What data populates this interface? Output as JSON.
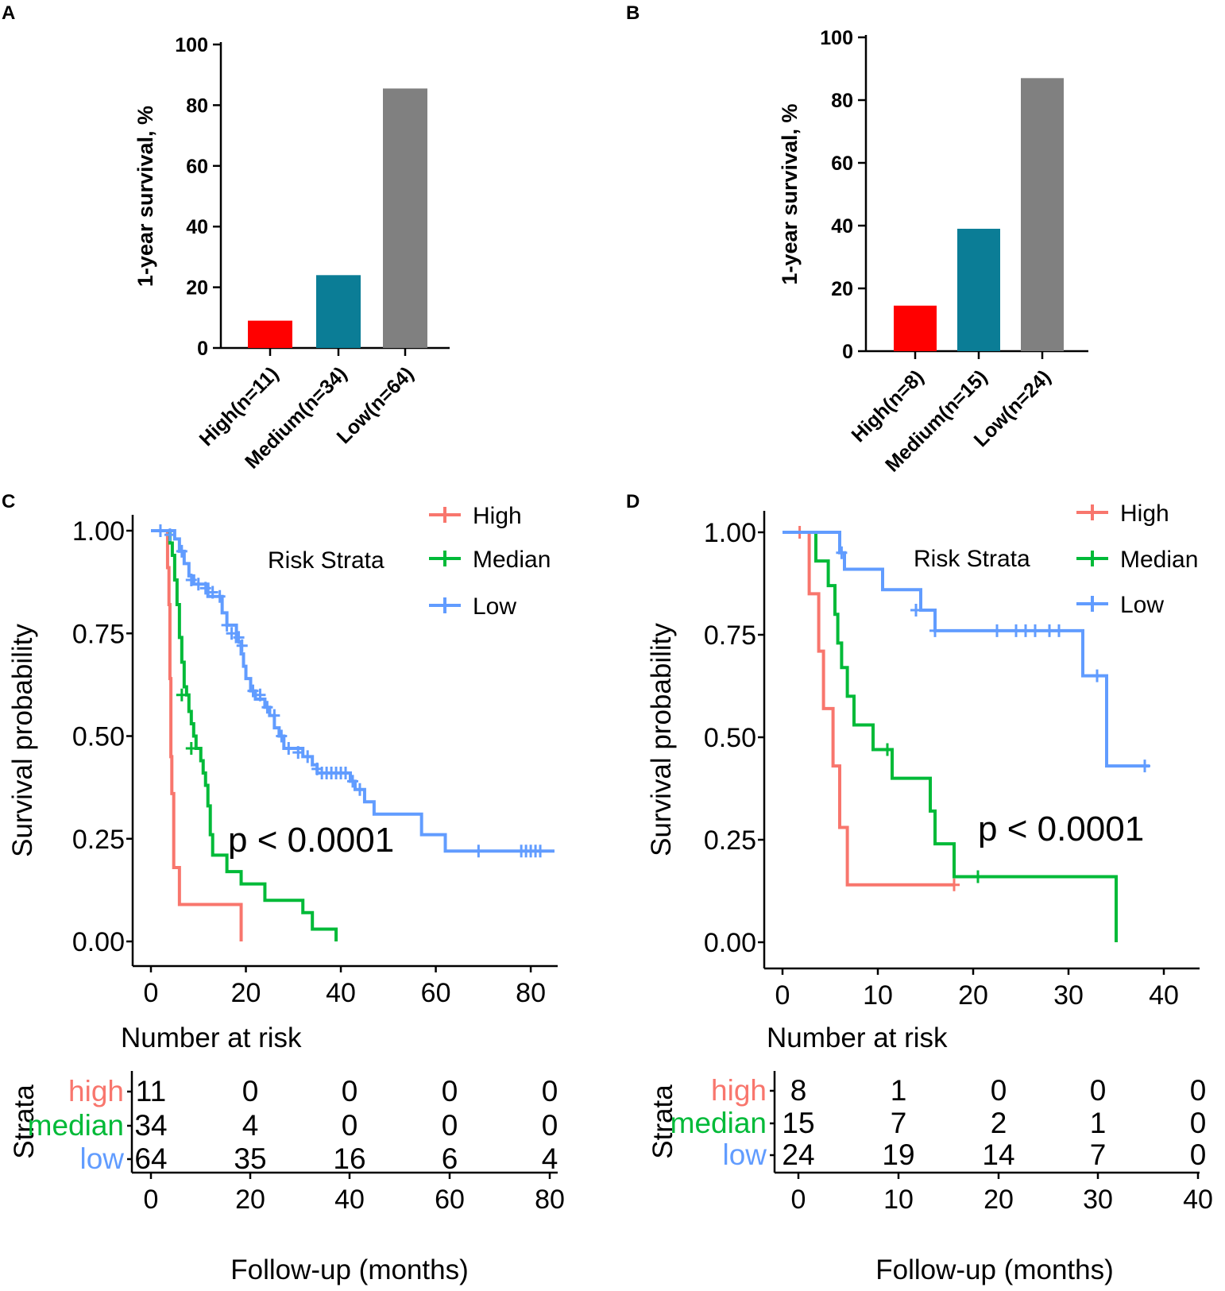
{
  "chart_data": [
    {
      "panel": "A",
      "type": "bar",
      "ylabel": "1-year survival, %",
      "xlabel": "",
      "ylim": [
        0,
        100
      ],
      "yticks": [
        "0",
        "20",
        "40",
        "60",
        "80",
        "100"
      ],
      "categories": [
        "High(n=11)",
        "Medium(n=34)",
        "Low(n=64)"
      ],
      "values": [
        9,
        24,
        85.5
      ],
      "colors": [
        "#ff0000",
        "#0b7d96",
        "#808080"
      ]
    },
    {
      "panel": "B",
      "type": "bar",
      "ylabel": "1-year survival, %",
      "xlabel": "",
      "ylim": [
        0,
        100
      ],
      "yticks": [
        "0",
        "20",
        "40",
        "60",
        "80",
        "100"
      ],
      "categories": [
        "High(n=8)",
        "Medium(n=15)",
        "Low(n=24)"
      ],
      "values": [
        14.5,
        39,
        87
      ],
      "colors": [
        "#ff0000",
        "#0b7d96",
        "#808080"
      ]
    },
    {
      "panel": "C",
      "type": "line",
      "subtype": "kaplan-meier",
      "ylabel": "Survival probability",
      "xlabel": "Follow-up (months)",
      "xlim": [
        0,
        84
      ],
      "ylim": [
        0,
        1
      ],
      "xticks": [
        "0",
        "20",
        "40",
        "60",
        "80"
      ],
      "yticks": [
        "0.00",
        "0.25",
        "0.50",
        "0.75",
        "1.00"
      ],
      "legend_title": "Risk Strata",
      "pvalue": "p < 0.0001",
      "series": [
        {
          "name": "High",
          "color": "#f8766d",
          "steps": [
            [
              0,
              1
            ],
            [
              3.5,
              1
            ],
            [
              3.5,
              0.91
            ],
            [
              3.8,
              0.82
            ],
            [
              4,
              0.64
            ],
            [
              4.2,
              0.45
            ],
            [
              4.4,
              0.36
            ],
            [
              4.8,
              0.18
            ],
            [
              6,
              0.09
            ],
            [
              19,
              0.09
            ],
            [
              19,
              0
            ]
          ],
          "censor": []
        },
        {
          "name": "Median",
          "color": "#00ba38",
          "steps": [
            [
              0,
              1
            ],
            [
              4,
              1
            ],
            [
              4,
              0.97
            ],
            [
              4.5,
              0.94
            ],
            [
              5,
              0.88
            ],
            [
              5.5,
              0.82
            ],
            [
              6,
              0.74
            ],
            [
              6.5,
              0.68
            ],
            [
              7,
              0.62
            ],
            [
              7.5,
              0.6
            ],
            [
              8,
              0.56
            ],
            [
              8.5,
              0.53
            ],
            [
              9,
              0.5
            ],
            [
              9.5,
              0.47
            ],
            [
              10.5,
              0.44
            ],
            [
              11,
              0.41
            ],
            [
              11.5,
              0.38
            ],
            [
              12,
              0.33
            ],
            [
              12.5,
              0.26
            ],
            [
              13,
              0.21
            ],
            [
              16,
              0.17
            ],
            [
              19,
              0.14
            ],
            [
              24,
              0.1
            ],
            [
              32,
              0.07
            ],
            [
              34,
              0.03
            ],
            [
              39,
              0.03
            ],
            [
              39,
              0
            ]
          ],
          "censor": [
            [
              6.5,
              0.6
            ],
            [
              8.5,
              0.47
            ]
          ]
        },
        {
          "name": "Low",
          "color": "#619cff",
          "steps": [
            [
              0,
              1
            ],
            [
              5,
              1
            ],
            [
              5,
              0.98
            ],
            [
              6,
              0.95
            ],
            [
              7,
              0.92
            ],
            [
              8,
              0.89
            ],
            [
              9,
              0.87
            ],
            [
              12,
              0.84
            ],
            [
              15,
              0.8
            ],
            [
              16,
              0.77
            ],
            [
              18,
              0.73
            ],
            [
              19,
              0.7
            ],
            [
              19.5,
              0.67
            ],
            [
              20,
              0.64
            ],
            [
              21,
              0.61
            ],
            [
              22,
              0.59
            ],
            [
              24,
              0.57
            ],
            [
              25,
              0.55
            ],
            [
              26,
              0.52
            ],
            [
              27,
              0.5
            ],
            [
              28,
              0.47
            ],
            [
              32,
              0.45
            ],
            [
              34,
              0.43
            ],
            [
              35,
              0.41
            ],
            [
              42,
              0.39
            ],
            [
              43,
              0.37
            ],
            [
              45,
              0.34
            ],
            [
              47,
              0.31
            ],
            [
              50,
              0.31
            ],
            [
              57,
              0.26
            ],
            [
              62,
              0.22
            ],
            [
              85,
              0.22
            ]
          ],
          "censor": [
            [
              2,
              1
            ],
            [
              4,
              0.99
            ],
            [
              6.5,
              0.95
            ],
            [
              8.5,
              0.88
            ],
            [
              10,
              0.87
            ],
            [
              11.5,
              0.86
            ],
            [
              13,
              0.85
            ],
            [
              14.5,
              0.84
            ],
            [
              16,
              0.77
            ],
            [
              17,
              0.75
            ],
            [
              18.5,
              0.74
            ],
            [
              19.2,
              0.72
            ],
            [
              21.5,
              0.61
            ],
            [
              23,
              0.6
            ],
            [
              24.5,
              0.57
            ],
            [
              26,
              0.55
            ],
            [
              27.5,
              0.5
            ],
            [
              29,
              0.47
            ],
            [
              31,
              0.46
            ],
            [
              33,
              0.45
            ],
            [
              35,
              0.42
            ],
            [
              36,
              0.41
            ],
            [
              37,
              0.41
            ],
            [
              38,
              0.41
            ],
            [
              39,
              0.41
            ],
            [
              40,
              0.41
            ],
            [
              41,
              0.41
            ],
            [
              42.5,
              0.39
            ],
            [
              44,
              0.37
            ],
            [
              69,
              0.22
            ],
            [
              78,
              0.22
            ],
            [
              79,
              0.22
            ],
            [
              80,
              0.22
            ],
            [
              81,
              0.22
            ],
            [
              82,
              0.22
            ]
          ]
        }
      ],
      "risk_table": {
        "title": "Number at risk",
        "axis_title": "Strata",
        "xlabel": "Follow-up (months)",
        "times": [
          "0",
          "20",
          "40",
          "60",
          "80"
        ],
        "rows": [
          {
            "label": "high",
            "color": "#f8766d",
            "values": [
              "11",
              "0",
              "0",
              "0",
              "0"
            ]
          },
          {
            "label": "median",
            "color": "#00ba38",
            "values": [
              "34",
              "4",
              "0",
              "0",
              "0"
            ]
          },
          {
            "label": "low",
            "color": "#619cff",
            "values": [
              "64",
              "35",
              "16",
              "6",
              "4"
            ]
          }
        ]
      }
    },
    {
      "panel": "D",
      "type": "line",
      "subtype": "kaplan-meier",
      "ylabel": "Survival probability",
      "xlabel": "Follow-up (months)",
      "xlim": [
        0,
        42
      ],
      "ylim": [
        0,
        1
      ],
      "xticks": [
        "0",
        "10",
        "20",
        "30",
        "40"
      ],
      "yticks": [
        "0.00",
        "0.25",
        "0.50",
        "0.75",
        "1.00"
      ],
      "legend_title": "Risk Strata",
      "pvalue": "p < 0.0001",
      "series": [
        {
          "name": "High",
          "color": "#f8766d",
          "steps": [
            [
              0,
              1
            ],
            [
              2.8,
              1
            ],
            [
              2.8,
              0.85
            ],
            [
              3.8,
              0.71
            ],
            [
              4.3,
              0.57
            ],
            [
              5.3,
              0.43
            ],
            [
              6,
              0.28
            ],
            [
              6.8,
              0.14
            ],
            [
              18,
              0.14
            ]
          ],
          "censor": [
            [
              1.8,
              1
            ],
            [
              18,
              0.14
            ]
          ]
        },
        {
          "name": "Median",
          "color": "#00ba38",
          "steps": [
            [
              0,
              1
            ],
            [
              3.5,
              1
            ],
            [
              3.5,
              0.93
            ],
            [
              4.8,
              0.87
            ],
            [
              5.5,
              0.8
            ],
            [
              5.8,
              0.73
            ],
            [
              6.2,
              0.67
            ],
            [
              6.8,
              0.6
            ],
            [
              7.5,
              0.6
            ],
            [
              7.5,
              0.53
            ],
            [
              9.5,
              0.53
            ],
            [
              9.5,
              0.47
            ],
            [
              11.5,
              0.47
            ],
            [
              11.5,
              0.4
            ],
            [
              15.5,
              0.4
            ],
            [
              15.5,
              0.32
            ],
            [
              16,
              0.24
            ],
            [
              18,
              0.24
            ],
            [
              18,
              0.16
            ],
            [
              35,
              0.16
            ],
            [
              35,
              0
            ]
          ],
          "censor": [
            [
              11,
              0.47
            ],
            [
              20.5,
              0.16
            ]
          ]
        },
        {
          "name": "Low",
          "color": "#619cff",
          "steps": [
            [
              0,
              1
            ],
            [
              6,
              1
            ],
            [
              6,
              0.95
            ],
            [
              6.5,
              0.91
            ],
            [
              10.5,
              0.91
            ],
            [
              10.5,
              0.86
            ],
            [
              14.5,
              0.86
            ],
            [
              14.5,
              0.81
            ],
            [
              16,
              0.81
            ],
            [
              16,
              0.76
            ],
            [
              31.5,
              0.76
            ],
            [
              31.5,
              0.65
            ],
            [
              34,
              0.65
            ],
            [
              34,
              0.43
            ],
            [
              38.5,
              0.43
            ]
          ],
          "censor": [
            [
              6.2,
              0.95
            ],
            [
              14,
              0.81
            ],
            [
              16,
              0.76
            ],
            [
              22.5,
              0.76
            ],
            [
              24.5,
              0.76
            ],
            [
              25.5,
              0.76
            ],
            [
              26.5,
              0.76
            ],
            [
              28,
              0.76
            ],
            [
              29,
              0.76
            ],
            [
              33,
              0.65
            ],
            [
              38,
              0.43
            ]
          ]
        }
      ],
      "risk_table": {
        "title": "Number at risk",
        "axis_title": "Strata",
        "xlabel": "Follow-up (months)",
        "times": [
          "0",
          "10",
          "20",
          "30",
          "40"
        ],
        "rows": [
          {
            "label": "high",
            "color": "#f8766d",
            "values": [
              "8",
              "1",
              "0",
              "0",
              "0"
            ]
          },
          {
            "label": "median",
            "color": "#00ba38",
            "values": [
              "15",
              "7",
              "2",
              "1",
              "0"
            ]
          },
          {
            "label": "low",
            "color": "#619cff",
            "values": [
              "24",
              "19",
              "14",
              "7",
              "0"
            ]
          }
        ]
      }
    }
  ]
}
